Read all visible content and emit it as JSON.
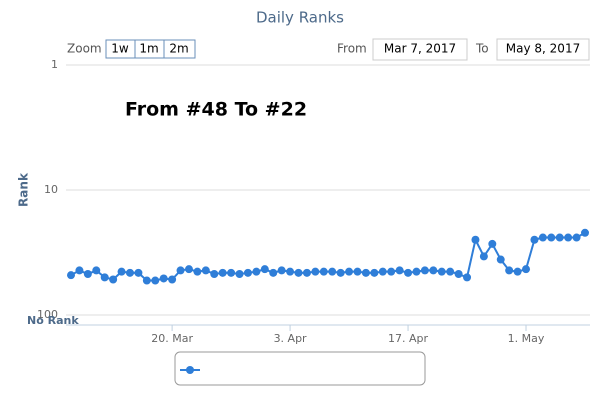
{
  "chart_data": {
    "type": "line",
    "title": "Daily Ranks",
    "zoom_label": "Zoom",
    "zoom_buttons": [
      "1w",
      "1m",
      "2m"
    ],
    "range": {
      "from_label": "From",
      "from": "Mar 7, 2017",
      "to_label": "To",
      "to": "May 8, 2017"
    },
    "annotation": "From #48 To #22",
    "y_label": "Rank",
    "no_data_label": "No Rank",
    "x": [
      "2017-03-08",
      "2017-03-09",
      "2017-03-10",
      "2017-03-11",
      "2017-03-12",
      "2017-03-13",
      "2017-03-14",
      "2017-03-15",
      "2017-03-16",
      "2017-03-17",
      "2017-03-18",
      "2017-03-19",
      "2017-03-20",
      "2017-03-21",
      "2017-03-22",
      "2017-03-23",
      "2017-03-24",
      "2017-03-25",
      "2017-03-26",
      "2017-03-27",
      "2017-03-28",
      "2017-03-29",
      "2017-03-30",
      "2017-03-31",
      "2017-04-01",
      "2017-04-02",
      "2017-04-03",
      "2017-04-04",
      "2017-04-05",
      "2017-04-06",
      "2017-04-07",
      "2017-04-08",
      "2017-04-09",
      "2017-04-10",
      "2017-04-11",
      "2017-04-12",
      "2017-04-13",
      "2017-04-14",
      "2017-04-15",
      "2017-04-16",
      "2017-04-17",
      "2017-04-18",
      "2017-04-19",
      "2017-04-20",
      "2017-04-21",
      "2017-04-22",
      "2017-04-23",
      "2017-04-24",
      "2017-04-25",
      "2017-04-26",
      "2017-04-27",
      "2017-04-28",
      "2017-04-29",
      "2017-04-30",
      "2017-05-01",
      "2017-05-02",
      "2017-05-03",
      "2017-05-04",
      "2017-05-05",
      "2017-05-06",
      "2017-05-07",
      "2017-05-08"
    ],
    "series": [
      {
        "color": "#2f7ed8",
        "values": [
          48,
          44,
          47,
          44,
          50,
          52,
          45,
          46,
          46,
          53,
          53,
          51,
          52,
          44,
          43,
          45,
          44,
          47,
          46,
          46,
          47,
          46,
          45,
          43,
          46,
          44,
          45,
          46,
          46,
          45,
          45,
          45,
          46,
          45,
          45,
          46,
          46,
          45,
          45,
          44,
          46,
          45,
          44,
          44,
          45,
          45,
          47,
          50,
          25,
          34,
          27,
          36,
          44,
          45,
          43,
          25,
          24,
          24,
          24,
          24,
          24,
          22
        ]
      }
    ],
    "xlim": [
      "2017-03-08",
      "2017-05-08"
    ],
    "xticks": [
      {
        "value": "2017-03-20",
        "label": "20. Mar"
      },
      {
        "value": "2017-04-03",
        "label": "3. Apr"
      },
      {
        "value": "2017-04-17",
        "label": "17. Apr"
      },
      {
        "value": "2017-05-01",
        "label": "1. May"
      }
    ],
    "ylim": [
      1,
      100
    ],
    "yticks": [
      1,
      10,
      100
    ],
    "log_y": true,
    "reversed_y": true,
    "grid": true
  }
}
